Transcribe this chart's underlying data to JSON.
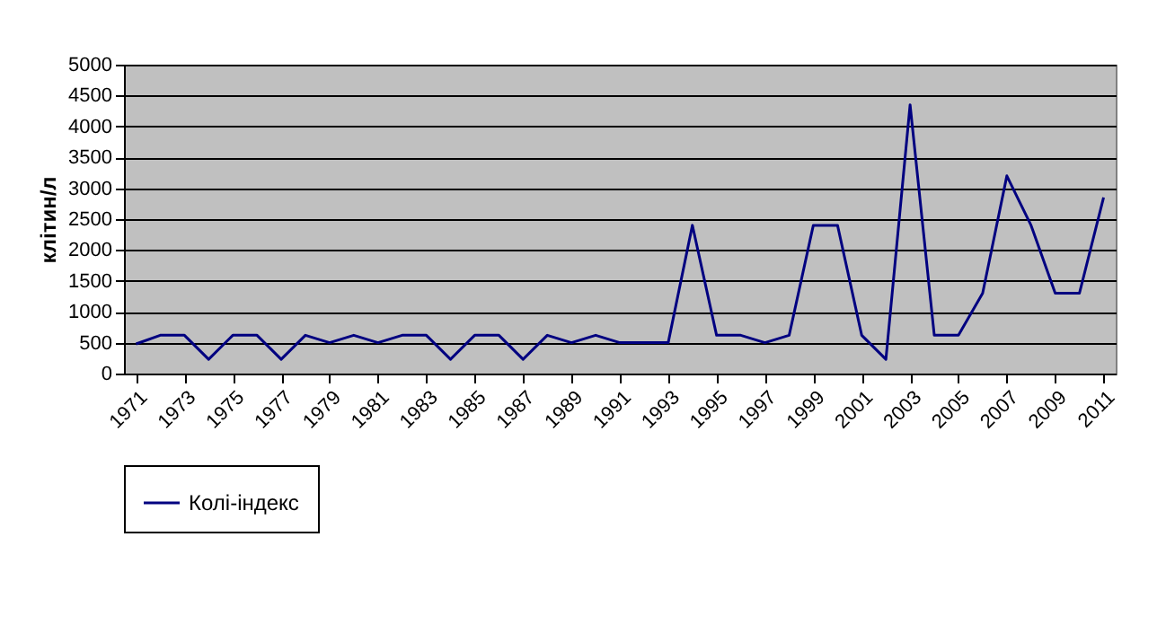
{
  "chart_data": {
    "type": "line",
    "ylabel": "клітин/л",
    "x": [
      1971,
      1972,
      1973,
      1974,
      1975,
      1976,
      1977,
      1978,
      1979,
      1980,
      1981,
      1982,
      1983,
      1984,
      1985,
      1986,
      1987,
      1988,
      1989,
      1990,
      1991,
      1992,
      1993,
      1994,
      1995,
      1996,
      1997,
      1998,
      1999,
      2000,
      2001,
      2002,
      2003,
      2004,
      2005,
      2006,
      2007,
      2008,
      2009,
      2010,
      2011
    ],
    "series": [
      {
        "name": "Колі-індекс",
        "color": "#000080",
        "values": [
          480,
          620,
          620,
          230,
          620,
          620,
          230,
          620,
          500,
          620,
          500,
          620,
          620,
          230,
          620,
          620,
          230,
          620,
          500,
          620,
          500,
          500,
          500,
          2400,
          620,
          620,
          500,
          620,
          2400,
          2400,
          620,
          230,
          4350,
          620,
          620,
          1300,
          3200,
          2400,
          1300,
          1300,
          2850
        ]
      }
    ],
    "xlim": [
      1970.5,
      2011.5
    ],
    "xticks": [
      1971,
      1973,
      1975,
      1977,
      1979,
      1981,
      1983,
      1985,
      1987,
      1989,
      1991,
      1993,
      1995,
      1997,
      1999,
      2001,
      2003,
      2005,
      2007,
      2009,
      2011
    ],
    "ylim": [
      0,
      5000
    ],
    "yticks": [
      0,
      500,
      1000,
      1500,
      2000,
      2500,
      3000,
      3500,
      4000,
      4500,
      5000
    ],
    "grid": "y",
    "legend": "bottom",
    "marker": "none",
    "line_style": "solid"
  }
}
